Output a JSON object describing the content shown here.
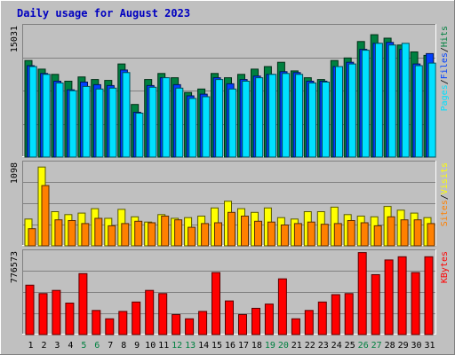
{
  "title": "Daily usage for August 2023",
  "colors": {
    "background": "#c0c0c0",
    "plot_bg": "#c0c0c0",
    "title": "#0000c0",
    "hits": "#008040",
    "files": "#0040ff",
    "pages": "#00e0ff",
    "visits": "#ffff00",
    "sites": "#ff8000",
    "kbytes": "#ff0000",
    "weekend_label": "#008040",
    "weekday_label": "#000000"
  },
  "chart_data": [
    {
      "type": "bar",
      "panel": "hits-files-pages",
      "ymax_label": "15031",
      "ylim": [
        0,
        15031
      ],
      "axis_legend": [
        {
          "text": "Pages",
          "color_key": "pages"
        },
        {
          "text": "/",
          "color_key": "weekday_label"
        },
        {
          "text": "Files",
          "color_key": "files"
        },
        {
          "text": "/",
          "color_key": "weekday_label"
        },
        {
          "text": "Hits",
          "color_key": "hits"
        }
      ],
      "series": [
        {
          "name": "Hits",
          "color_key": "hits",
          "values": [
            11200,
            10200,
            9600,
            8800,
            9300,
            9000,
            8900,
            10800,
            6100,
            9000,
            9700,
            9200,
            7500,
            7900,
            9700,
            9200,
            9600,
            10200,
            10500,
            11000,
            10000,
            9200,
            9000,
            11200,
            11500,
            13400,
            14200,
            13800,
            13000,
            12200,
            11800
          ]
        },
        {
          "name": "Files",
          "color_key": "files",
          "values": [
            10600,
            9700,
            8800,
            7800,
            8700,
            8400,
            8300,
            10100,
            5200,
            8300,
            9200,
            8400,
            7100,
            7300,
            9200,
            8500,
            9000,
            9400,
            9600,
            9900,
            9800,
            8800,
            8800,
            10500,
            11000,
            12500,
            13200,
            13300,
            12500,
            10800,
            12000
          ]
        },
        {
          "name": "Pages",
          "color_key": "pages",
          "values": [
            10500,
            9600,
            8600,
            7700,
            8200,
            7900,
            8000,
            9800,
            5100,
            8100,
            9200,
            8000,
            6800,
            7000,
            9000,
            7900,
            8800,
            9200,
            9600,
            9700,
            9600,
            8600,
            8700,
            10500,
            10800,
            12400,
            13200,
            13000,
            13200,
            10600,
            10900
          ]
        }
      ]
    },
    {
      "type": "bar",
      "panel": "visits-sites",
      "ymax_label": "1098",
      "ylim": [
        0,
        1098
      ],
      "axis_legend": [
        {
          "text": "Sites",
          "color_key": "sites"
        },
        {
          "text": "/",
          "color_key": "weekday_label"
        },
        {
          "text": "Visits",
          "color_key": "visits"
        }
      ],
      "series": [
        {
          "name": "Visits",
          "color_key": "visits",
          "values": [
            360,
            1060,
            460,
            420,
            440,
            500,
            370,
            490,
            390,
            320,
            420,
            370,
            380,
            400,
            510,
            600,
            500,
            450,
            510,
            380,
            360,
            460,
            460,
            520,
            420,
            400,
            390,
            530,
            480,
            440,
            380
          ]
        },
        {
          "name": "Sites",
          "color_key": "sites",
          "values": [
            230,
            810,
            350,
            340,
            300,
            370,
            270,
            300,
            330,
            310,
            400,
            350,
            250,
            300,
            310,
            450,
            400,
            330,
            320,
            280,
            300,
            320,
            290,
            300,
            340,
            310,
            270,
            390,
            350,
            350,
            300
          ]
        }
      ]
    },
    {
      "type": "bar",
      "panel": "kbytes",
      "ymax_label": "776573",
      "ylim": [
        0,
        776573
      ],
      "axis_legend": [
        {
          "text": "KBytes",
          "color_key": "kbytes"
        }
      ],
      "series": [
        {
          "name": "KBytes",
          "color_key": "kbytes",
          "values": [
            470000,
            390000,
            420000,
            300000,
            580000,
            230000,
            150000,
            220000,
            310000,
            420000,
            390000,
            190000,
            150000,
            220000,
            590000,
            320000,
            190000,
            250000,
            290000,
            530000,
            150000,
            230000,
            310000,
            380000,
            390000,
            780000,
            570000,
            710000,
            740000,
            590000,
            740000
          ]
        }
      ]
    }
  ],
  "days": [
    "1",
    "2",
    "3",
    "4",
    "5",
    "6",
    "7",
    "8",
    "9",
    "10",
    "11",
    "12",
    "13",
    "14",
    "15",
    "16",
    "17",
    "18",
    "19",
    "20",
    "21",
    "22",
    "23",
    "24",
    "25",
    "26",
    "27",
    "28",
    "29",
    "30",
    "31"
  ],
  "weekend_days": [
    5,
    6,
    12,
    13,
    19,
    20,
    26,
    27
  ]
}
